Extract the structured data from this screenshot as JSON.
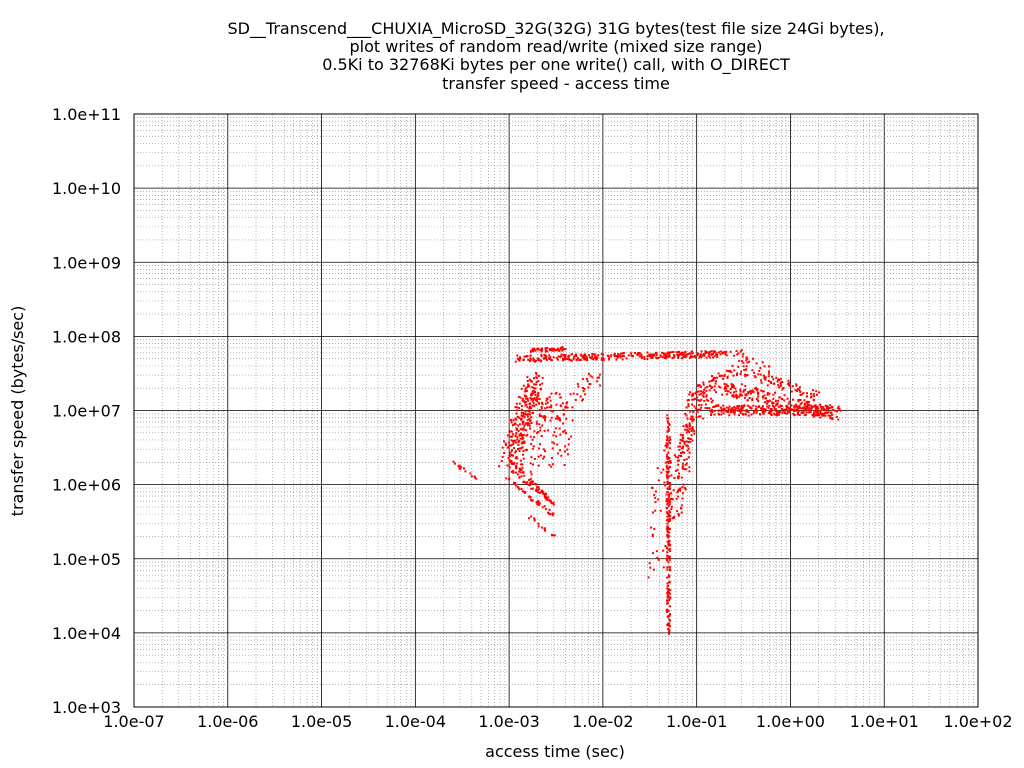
{
  "chart_data": {
    "type": "scatter",
    "title_lines": [
      "SD__Transcend___CHUXIA_MicroSD_32G(32G) 31G bytes(test file size 24Gi bytes),",
      "plot writes of random read/write (mixed size range)",
      "0.5Ki to 32768Ki bytes per one write() call, with O_DIRECT",
      "transfer speed - access time"
    ],
    "xlabel": "access time (sec)",
    "ylabel": "transfer speed (bytes/sec)",
    "x_scale": "log",
    "y_scale": "log",
    "xlim": [
      1e-07,
      100
    ],
    "ylim": [
      1000,
      100000000000.0
    ],
    "x_ticks": [
      "1.0e-07",
      "1.0e-06",
      "1.0e-05",
      "1.0e-04",
      "1.0e-03",
      "1.0e-02",
      "1.0e-01",
      "1.0e+00",
      "1.0e+01",
      "1.0e+02"
    ],
    "y_ticks": [
      "1.0e+03",
      "1.0e+04",
      "1.0e+05",
      "1.0e+06",
      "1.0e+07",
      "1.0e+08",
      "1.0e+09",
      "1.0e+10",
      "1.0e+11"
    ],
    "grid": true,
    "series": [
      {
        "color": "#ff0000",
        "clusters": [
          {
            "kind": "band",
            "from": [
              0.0013,
              50000000.0
            ],
            "to": [
              0.2,
              58000000.0
            ],
            "spread": 0.09,
            "n": 320
          },
          {
            "kind": "band",
            "from": [
              0.0017,
              65000000.0
            ],
            "to": [
              0.004,
              68000000.0
            ],
            "spread": 0.05,
            "n": 50
          },
          {
            "kind": "band",
            "from": [
              0.00095,
              2000000.0
            ],
            "to": [
              0.0018,
              25000000.0
            ],
            "spread": 0.18,
            "n": 140
          },
          {
            "kind": "band",
            "from": [
              0.0012,
              3000000.0
            ],
            "to": [
              0.002,
              30000000.0
            ],
            "spread": 0.15,
            "n": 90
          },
          {
            "kind": "band",
            "from": [
              0.0014,
              1500000.0
            ],
            "to": [
              0.0025,
              20000000.0
            ],
            "spread": 0.2,
            "n": 70
          },
          {
            "kind": "band",
            "from": [
              0.0022,
              1500000.0
            ],
            "to": [
              0.0035,
              20000000.0
            ],
            "spread": 0.25,
            "n": 50
          },
          {
            "kind": "band",
            "from": [
              0.0032,
              2000000.0
            ],
            "to": [
              0.0045,
              15000000.0
            ],
            "spread": 0.2,
            "n": 35
          },
          {
            "kind": "band",
            "from": [
              0.005,
              15000000.0
            ],
            "to": [
              0.009,
              30000000.0
            ],
            "spread": 0.15,
            "n": 25
          },
          {
            "kind": "band",
            "from": [
              0.00025,
              2000000.0
            ],
            "to": [
              0.00045,
              1200000.0
            ],
            "spread": 0.03,
            "n": 16
          },
          {
            "kind": "band",
            "from": [
              0.00095,
              2300000.0
            ],
            "to": [
              0.0025,
              700000.0
            ],
            "spread": 0.04,
            "n": 40
          },
          {
            "kind": "band",
            "from": [
              0.00095,
              1700000.0
            ],
            "to": [
              0.003,
              550000.0
            ],
            "spread": 0.04,
            "n": 40
          },
          {
            "kind": "band",
            "from": [
              0.00095,
              1200000.0
            ],
            "to": [
              0.003,
              380000.0
            ],
            "spread": 0.04,
            "n": 40
          },
          {
            "kind": "band",
            "from": [
              0.0015,
              400000.0
            ],
            "to": [
              0.003,
              200000.0
            ],
            "spread": 0.04,
            "n": 14
          },
          {
            "kind": "band",
            "from": [
              0.05,
              10000.0
            ],
            "to": [
              0.05,
              9000000.0
            ],
            "spread": 0.04,
            "n": 200
          },
          {
            "kind": "band",
            "from": [
              0.035,
              50000.0
            ],
            "to": [
              0.045,
              3000000.0
            ],
            "spread": 0.2,
            "n": 40
          },
          {
            "kind": "band",
            "from": [
              0.055,
              300000.0
            ],
            "to": [
              0.1,
              20000000.0
            ],
            "spread": 0.15,
            "n": 120
          },
          {
            "kind": "band",
            "from": [
              0.06,
              2000000.0
            ],
            "to": [
              0.15,
              25000000.0
            ],
            "spread": 0.15,
            "n": 70
          },
          {
            "kind": "band",
            "from": [
              0.09,
              15000000.0
            ],
            "to": [
              0.3,
              40000000.0
            ],
            "spread": 0.15,
            "n": 60
          },
          {
            "kind": "band",
            "from": [
              0.15,
              10000000.0
            ],
            "to": [
              3.0,
              10000000.0
            ],
            "spread": 0.14,
            "n": 260
          },
          {
            "kind": "band",
            "from": [
              0.2,
              20000000.0
            ],
            "to": [
              3.0,
              9000000.0
            ],
            "spread": 0.18,
            "n": 200
          },
          {
            "kind": "band",
            "from": [
              0.3,
              35000000.0
            ],
            "to": [
              2.0,
              15000000.0
            ],
            "spread": 0.12,
            "n": 80
          },
          {
            "kind": "band",
            "from": [
              0.25,
              60000000.0
            ],
            "to": [
              0.6,
              35000000.0
            ],
            "spread": 0.15,
            "n": 25
          }
        ]
      }
    ]
  }
}
